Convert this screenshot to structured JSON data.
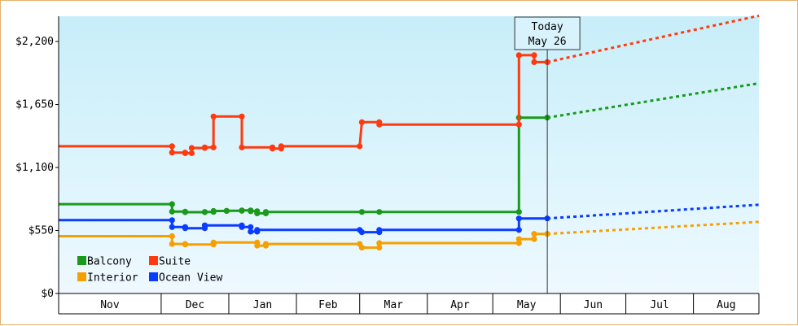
{
  "chart_data": {
    "type": "line",
    "title": "",
    "xlabel": "",
    "ylabel": "",
    "ylim": [
      0,
      2420
    ],
    "y_ticks": [
      "$0",
      "$550",
      "$1,100",
      "$1,650",
      "$2,200"
    ],
    "y_tick_values": [
      0,
      550,
      1100,
      1650,
      2200
    ],
    "x_axis": {
      "start": "2023-10-15",
      "end": "2024-08-31",
      "months": [
        {
          "label": "Nov",
          "start": "2023-11-01"
        },
        {
          "label": "Dec",
          "start": "2023-12-01"
        },
        {
          "label": "Jan",
          "start": "2024-01-01"
        },
        {
          "label": "Feb",
          "start": "2024-02-01"
        },
        {
          "label": "Mar",
          "start": "2024-03-01"
        },
        {
          "label": "Apr",
          "start": "2024-04-01"
        },
        {
          "label": "May",
          "start": "2024-05-01"
        },
        {
          "label": "Jun",
          "start": "2024-06-01"
        },
        {
          "label": "Jul",
          "start": "2024-07-01"
        },
        {
          "label": "Aug",
          "start": "2024-08-01"
        }
      ]
    },
    "today": {
      "line1": "Today",
      "line2": "May 26",
      "date": "2024-05-26"
    },
    "grid": false,
    "legend_position": "bottom-left",
    "colors": {
      "background_top": "#c8eef9",
      "background_bottom": "#eef9ff",
      "border": "#e8b06a",
      "axis": "#000000"
    },
    "series": [
      {
        "name": "Balcony",
        "color": "#1a9a1a",
        "steps": [
          {
            "x": "2023-10-15",
            "y": 780
          },
          {
            "x": "2023-12-06",
            "y": 780
          },
          {
            "x": "2023-12-06",
            "y": 715
          },
          {
            "x": "2023-12-12",
            "y": 715
          },
          {
            "x": "2023-12-12",
            "y": 710
          },
          {
            "x": "2023-12-21",
            "y": 710
          },
          {
            "x": "2023-12-21",
            "y": 712
          },
          {
            "x": "2023-12-25",
            "y": 712
          },
          {
            "x": "2023-12-25",
            "y": 720
          },
          {
            "x": "2023-12-31",
            "y": 720
          },
          {
            "x": "2023-12-31",
            "y": 722
          },
          {
            "x": "2024-01-07",
            "y": 722
          },
          {
            "x": "2024-01-07",
            "y": 725
          },
          {
            "x": "2024-01-11",
            "y": 725
          },
          {
            "x": "2024-01-11",
            "y": 718
          },
          {
            "x": "2024-01-14",
            "y": 718
          },
          {
            "x": "2024-01-14",
            "y": 700
          },
          {
            "x": "2024-01-18",
            "y": 700
          },
          {
            "x": "2024-01-18",
            "y": 712
          },
          {
            "x": "2024-03-02",
            "y": 712
          },
          {
            "x": "2024-03-10",
            "y": 712
          },
          {
            "x": "2024-05-13",
            "y": 712
          },
          {
            "x": "2024-05-13",
            "y": 1535
          },
          {
            "x": "2024-05-26",
            "y": 1535
          }
        ],
        "forecast": [
          {
            "x": "2024-05-26",
            "y": 1535
          },
          {
            "x": "2024-08-31",
            "y": 1835
          }
        ]
      },
      {
        "name": "Suite",
        "color": "#ff3a10",
        "steps": [
          {
            "x": "2023-10-15",
            "y": 1285
          },
          {
            "x": "2023-12-06",
            "y": 1285
          },
          {
            "x": "2023-12-06",
            "y": 1230
          },
          {
            "x": "2023-12-12",
            "y": 1230
          },
          {
            "x": "2023-12-12",
            "y": 1225
          },
          {
            "x": "2023-12-15",
            "y": 1225
          },
          {
            "x": "2023-12-15",
            "y": 1270
          },
          {
            "x": "2023-12-21",
            "y": 1270
          },
          {
            "x": "2023-12-21",
            "y": 1275
          },
          {
            "x": "2023-12-25",
            "y": 1275
          },
          {
            "x": "2023-12-25",
            "y": 1545
          },
          {
            "x": "2024-01-07",
            "y": 1545
          },
          {
            "x": "2024-01-07",
            "y": 1275
          },
          {
            "x": "2024-01-21",
            "y": 1275
          },
          {
            "x": "2024-01-21",
            "y": 1265
          },
          {
            "x": "2024-01-25",
            "y": 1265
          },
          {
            "x": "2024-01-25",
            "y": 1285
          },
          {
            "x": "2024-03-01",
            "y": 1285
          },
          {
            "x": "2024-03-02",
            "y": 1495
          },
          {
            "x": "2024-03-10",
            "y": 1495
          },
          {
            "x": "2024-03-10",
            "y": 1475
          },
          {
            "x": "2024-05-13",
            "y": 1475
          },
          {
            "x": "2024-05-13",
            "y": 2080
          },
          {
            "x": "2024-05-20",
            "y": 2080
          },
          {
            "x": "2024-05-20",
            "y": 2020
          },
          {
            "x": "2024-05-26",
            "y": 2020
          }
        ],
        "forecast": [
          {
            "x": "2024-05-26",
            "y": 2020
          },
          {
            "x": "2024-08-31",
            "y": 2425
          }
        ]
      },
      {
        "name": "Interior",
        "color": "#f5a000",
        "steps": [
          {
            "x": "2023-10-15",
            "y": 500
          },
          {
            "x": "2023-12-06",
            "y": 500
          },
          {
            "x": "2023-12-06",
            "y": 432
          },
          {
            "x": "2023-12-12",
            "y": 432
          },
          {
            "x": "2023-12-12",
            "y": 428
          },
          {
            "x": "2023-12-25",
            "y": 428
          },
          {
            "x": "2023-12-25",
            "y": 445
          },
          {
            "x": "2024-01-14",
            "y": 445
          },
          {
            "x": "2024-01-14",
            "y": 418
          },
          {
            "x": "2024-01-18",
            "y": 418
          },
          {
            "x": "2024-01-18",
            "y": 432
          },
          {
            "x": "2024-03-01",
            "y": 432
          },
          {
            "x": "2024-03-02",
            "y": 400
          },
          {
            "x": "2024-03-10",
            "y": 400
          },
          {
            "x": "2024-03-10",
            "y": 440
          },
          {
            "x": "2024-05-13",
            "y": 440
          },
          {
            "x": "2024-05-13",
            "y": 475
          },
          {
            "x": "2024-05-20",
            "y": 475
          },
          {
            "x": "2024-05-20",
            "y": 520
          },
          {
            "x": "2024-05-26",
            "y": 520
          }
        ],
        "forecast": [
          {
            "x": "2024-05-26",
            "y": 520
          },
          {
            "x": "2024-08-31",
            "y": 625
          }
        ]
      },
      {
        "name": "Ocean View",
        "color": "#0a3cff",
        "steps": [
          {
            "x": "2023-10-15",
            "y": 640
          },
          {
            "x": "2023-12-06",
            "y": 640
          },
          {
            "x": "2023-12-06",
            "y": 580
          },
          {
            "x": "2023-12-12",
            "y": 580
          },
          {
            "x": "2023-12-12",
            "y": 570
          },
          {
            "x": "2023-12-21",
            "y": 570
          },
          {
            "x": "2023-12-21",
            "y": 595
          },
          {
            "x": "2024-01-07",
            "y": 595
          },
          {
            "x": "2024-01-07",
            "y": 580
          },
          {
            "x": "2024-01-11",
            "y": 580
          },
          {
            "x": "2024-01-11",
            "y": 540
          },
          {
            "x": "2024-01-14",
            "y": 540
          },
          {
            "x": "2024-01-14",
            "y": 555
          },
          {
            "x": "2024-03-01",
            "y": 555
          },
          {
            "x": "2024-03-02",
            "y": 535
          },
          {
            "x": "2024-03-10",
            "y": 535
          },
          {
            "x": "2024-03-10",
            "y": 555
          },
          {
            "x": "2024-05-13",
            "y": 555
          },
          {
            "x": "2024-05-13",
            "y": 655
          },
          {
            "x": "2024-05-26",
            "y": 655
          }
        ],
        "forecast": [
          {
            "x": "2024-05-26",
            "y": 655
          },
          {
            "x": "2024-08-31",
            "y": 775
          }
        ]
      }
    ]
  }
}
